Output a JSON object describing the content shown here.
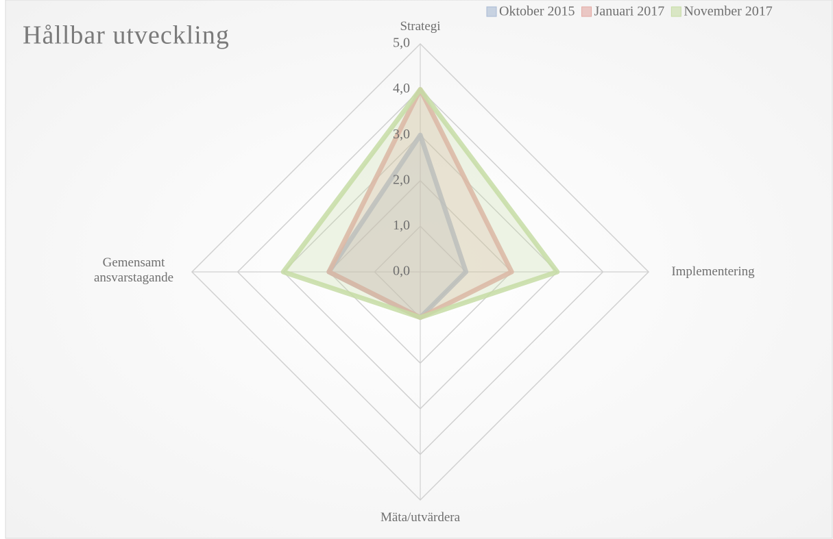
{
  "chart_data": {
    "type": "radar",
    "title": "Hållbar utveckling",
    "categories": [
      "Strategi",
      "Implementering",
      "Mäta/utvärdera",
      "Gemensamt ansvarstagande"
    ],
    "series": [
      {
        "name": "Oktober 2015",
        "color": "#a9bad4",
        "values": [
          3,
          1,
          1,
          2
        ]
      },
      {
        "name": "Januari 2017",
        "color": "#e3a9a3",
        "values": [
          4,
          2,
          1,
          2
        ]
      },
      {
        "name": "November 2017",
        "color": "#c6dca4",
        "values": [
          4,
          3,
          1,
          3
        ]
      }
    ],
    "ylim": [
      0,
      5
    ],
    "yticks": [
      {
        "value": 0,
        "label": "0,0"
      },
      {
        "value": 1,
        "label": "1,0"
      },
      {
        "value": 2,
        "label": "2,0"
      },
      {
        "value": 3,
        "label": "3,0"
      },
      {
        "value": 4,
        "label": "4,0"
      },
      {
        "value": 5,
        "label": "5,0"
      }
    ],
    "grid": true,
    "legend": "top-right"
  }
}
